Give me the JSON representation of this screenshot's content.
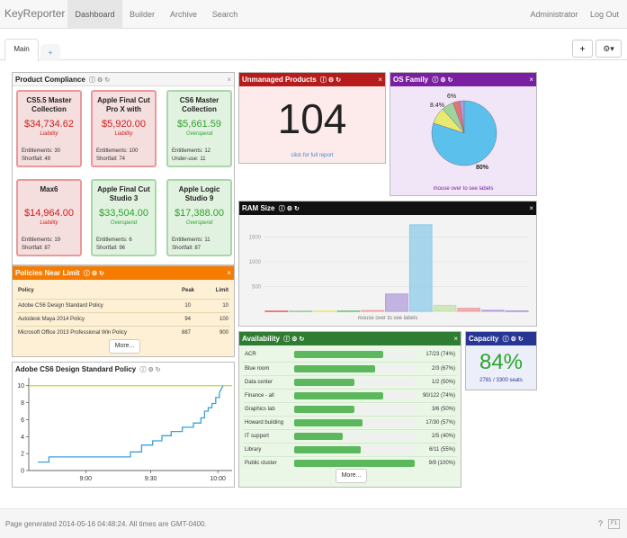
{
  "navbar": {
    "brand": "KeyReporter",
    "links": [
      "Dashboard",
      "Builder",
      "Archive",
      "Search"
    ],
    "user": "Administrator",
    "logout": "Log Out"
  },
  "tabs": {
    "main": "Main",
    "add": "+"
  },
  "toolbar": {
    "add": "+",
    "settings": "⚙▾"
  },
  "product_compliance": {
    "title": "Product Compliance",
    "cards": [
      {
        "name": "CS5.5 Master Collection",
        "amount": "$34,734.62",
        "status": "Liability",
        "line1": "Entitlements: 30",
        "line2": "Shortfall: 49",
        "tone": "red"
      },
      {
        "name": "Apple Final Cut Pro X with",
        "amount": "$5,920.00",
        "status": "Liability",
        "line1": "Entitlements: 100",
        "line2": "Shortfall: 74",
        "tone": "red"
      },
      {
        "name": "CS6 Master Collection",
        "amount": "$5,661.59",
        "status": "Overspend",
        "line1": "Entitlements: 12",
        "line2": "Under-use: 11",
        "tone": "green"
      },
      {
        "name": "Max6",
        "amount": "$14,964.00",
        "status": "Liability",
        "line1": "Entitlements: 19",
        "line2": "Shortfall: 87",
        "tone": "red"
      },
      {
        "name": "Apple Final Cut Studio 3",
        "amount": "$33,504.00",
        "status": "Overspend",
        "line1": "Entitlements: 6",
        "line2": "Shortfall: 96",
        "tone": "green"
      },
      {
        "name": "Apple Logic Studio 9",
        "amount": "$17,388.00",
        "status": "Overspend",
        "line1": "Entitlements: 11",
        "line2": "Shortfall: 87",
        "tone": "green"
      }
    ]
  },
  "unmanaged": {
    "title": "Unmanaged Products",
    "count": "104",
    "link": "click for full report"
  },
  "os_family": {
    "title": "OS Family",
    "labels": [
      "6%",
      "8.4%",
      "80%"
    ],
    "hint": "mouse over to see labels"
  },
  "ram_size": {
    "title": "RAM Size",
    "hint": "mouse over to see labels"
  },
  "policies": {
    "title": "Policies Near Limit",
    "headers": [
      "Policy",
      "Peak",
      "Limit"
    ],
    "rows": [
      {
        "policy": "Adobe CS6 Design Standard Policy",
        "peak": "10",
        "limit": "10"
      },
      {
        "policy": "Autodesk Maya 2014 Policy",
        "peak": "94",
        "limit": "100"
      },
      {
        "policy": "Microsoft Office 2013 Professional Win Policy",
        "peak": "887",
        "limit": "900"
      }
    ],
    "more": "More..."
  },
  "policy_chart": {
    "title": "Adobe CS6 Design Standard Policy"
  },
  "availability": {
    "title": "Availability",
    "rows": [
      {
        "name": "ACR",
        "value": "17/23 (74%)",
        "pct": 74
      },
      {
        "name": "Blue room",
        "value": "2/3 (67%)",
        "pct": 67
      },
      {
        "name": "Data center",
        "value": "1/2 (50%)",
        "pct": 50
      },
      {
        "name": "Finance - all",
        "value": "90/122 (74%)",
        "pct": 74
      },
      {
        "name": "Graphics lab",
        "value": "3/6 (50%)",
        "pct": 50
      },
      {
        "name": "Howard building",
        "value": "17/30 (57%)",
        "pct": 57
      },
      {
        "name": "IT support",
        "value": "2/5 (40%)",
        "pct": 40
      },
      {
        "name": "Library",
        "value": "6/11 (55%)",
        "pct": 55
      },
      {
        "name": "Public cluster",
        "value": "9/9 (100%)",
        "pct": 100
      }
    ],
    "more": "More..."
  },
  "capacity": {
    "title": "Capacity",
    "percent": "84%",
    "seats": "2781 / 3300 seats"
  },
  "footer": {
    "text": "Page generated 2014-05-16 04:48:24. All times are GMT-0400.",
    "help": "F1"
  },
  "chart_data": [
    {
      "type": "pie",
      "categories": [
        "",
        "",
        "",
        "",
        ""
      ],
      "values": [
        80,
        8.4,
        6,
        3.4,
        2.2
      ],
      "colors": [
        "#5bc0eb",
        "#e7ea6f",
        "#9fd39f",
        "#e57373",
        "#b39ddb"
      ],
      "data_labels": [
        "80%",
        "8.4%",
        "6%",
        "",
        ""
      ]
    },
    {
      "type": "bar",
      "categories": [
        "",
        "",
        "",
        "",
        "",
        "",
        "",
        "",
        "",
        "",
        ""
      ],
      "values": [
        5,
        5,
        5,
        10,
        15,
        350,
        1750,
        120,
        60,
        20,
        10
      ],
      "colors": [
        "#e57373",
        "#9fd39f",
        "#e7ea6f",
        "#81c784",
        "#ef9a9a",
        "#b39ddb",
        "#8ecbe8",
        "#c5e1a5",
        "#ef9a9a",
        "#b39ddb",
        "#b39ddb"
      ],
      "yticks": [
        "500",
        "1000",
        "1500"
      ],
      "ylim": [
        0,
        1800
      ]
    },
    {
      "type": "line",
      "x_ticks": [
        "9:00",
        "9:30",
        "10:00"
      ],
      "y_ticks": [
        "0",
        "2",
        "4",
        "6",
        "8",
        "10"
      ],
      "ylim": [
        0,
        10.5
      ],
      "limit": 10,
      "series": [
        {
          "x": [
            0,
            0.06,
            0.06,
            0.2,
            0.2,
            0.5,
            0.5,
            0.56,
            0.56,
            0.62,
            0.62,
            0.67,
            0.67,
            0.72,
            0.72,
            0.78,
            0.78,
            0.84,
            0.84,
            0.88,
            0.88,
            0.9,
            0.9,
            0.92,
            0.92,
            0.94,
            0.94,
            0.96,
            0.96,
            0.98,
            0.98,
            1.0
          ],
          "y": [
            1,
            1,
            1.6,
            1.6,
            1.6,
            1.6,
            2.2,
            2.2,
            3,
            3,
            3.5,
            3.5,
            4.1,
            4.1,
            4.6,
            4.6,
            5.1,
            5.1,
            5.6,
            5.6,
            6.2,
            6.2,
            7,
            7,
            7.4,
            7.4,
            7.9,
            7.9,
            8.6,
            8.6,
            9.2,
            10
          ]
        }
      ]
    }
  ]
}
